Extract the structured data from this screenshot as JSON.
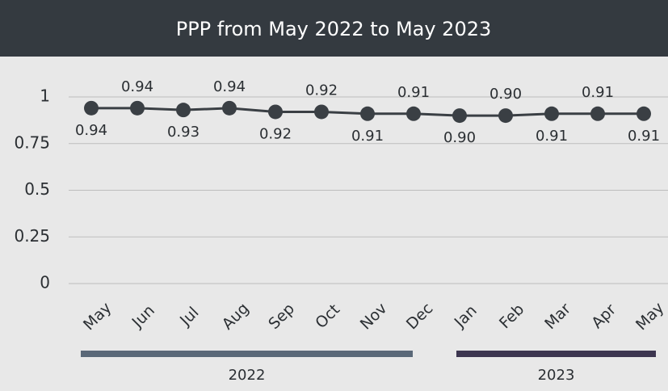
{
  "chart_data": {
    "type": "line",
    "title": "PPP from May 2022 to May 2023",
    "categories": [
      "May",
      "Jun",
      "Jul",
      "Aug",
      "Sep",
      "Oct",
      "Nov",
      "Dec",
      "Jan",
      "Feb",
      "Mar",
      "Apr",
      "May"
    ],
    "series": [
      {
        "name": "PPP",
        "color": "#3a3f44",
        "values": [
          0.94,
          0.94,
          0.93,
          0.94,
          0.92,
          0.92,
          0.91,
          0.91,
          0.9,
          0.9,
          0.91,
          0.91,
          0.91
        ],
        "value_labels": [
          "0.94",
          "0.94",
          "0.93",
          "0.94",
          "0.92",
          "0.92",
          "0.91",
          "0.91",
          "0.90",
          "0.90",
          "0.91",
          "0.91",
          "0.91"
        ]
      }
    ],
    "ylim": [
      0,
      1
    ],
    "yticks": [
      0,
      0.25,
      0.5,
      0.75,
      1
    ],
    "grid": true,
    "groups": [
      "2022",
      "2023"
    ]
  }
}
